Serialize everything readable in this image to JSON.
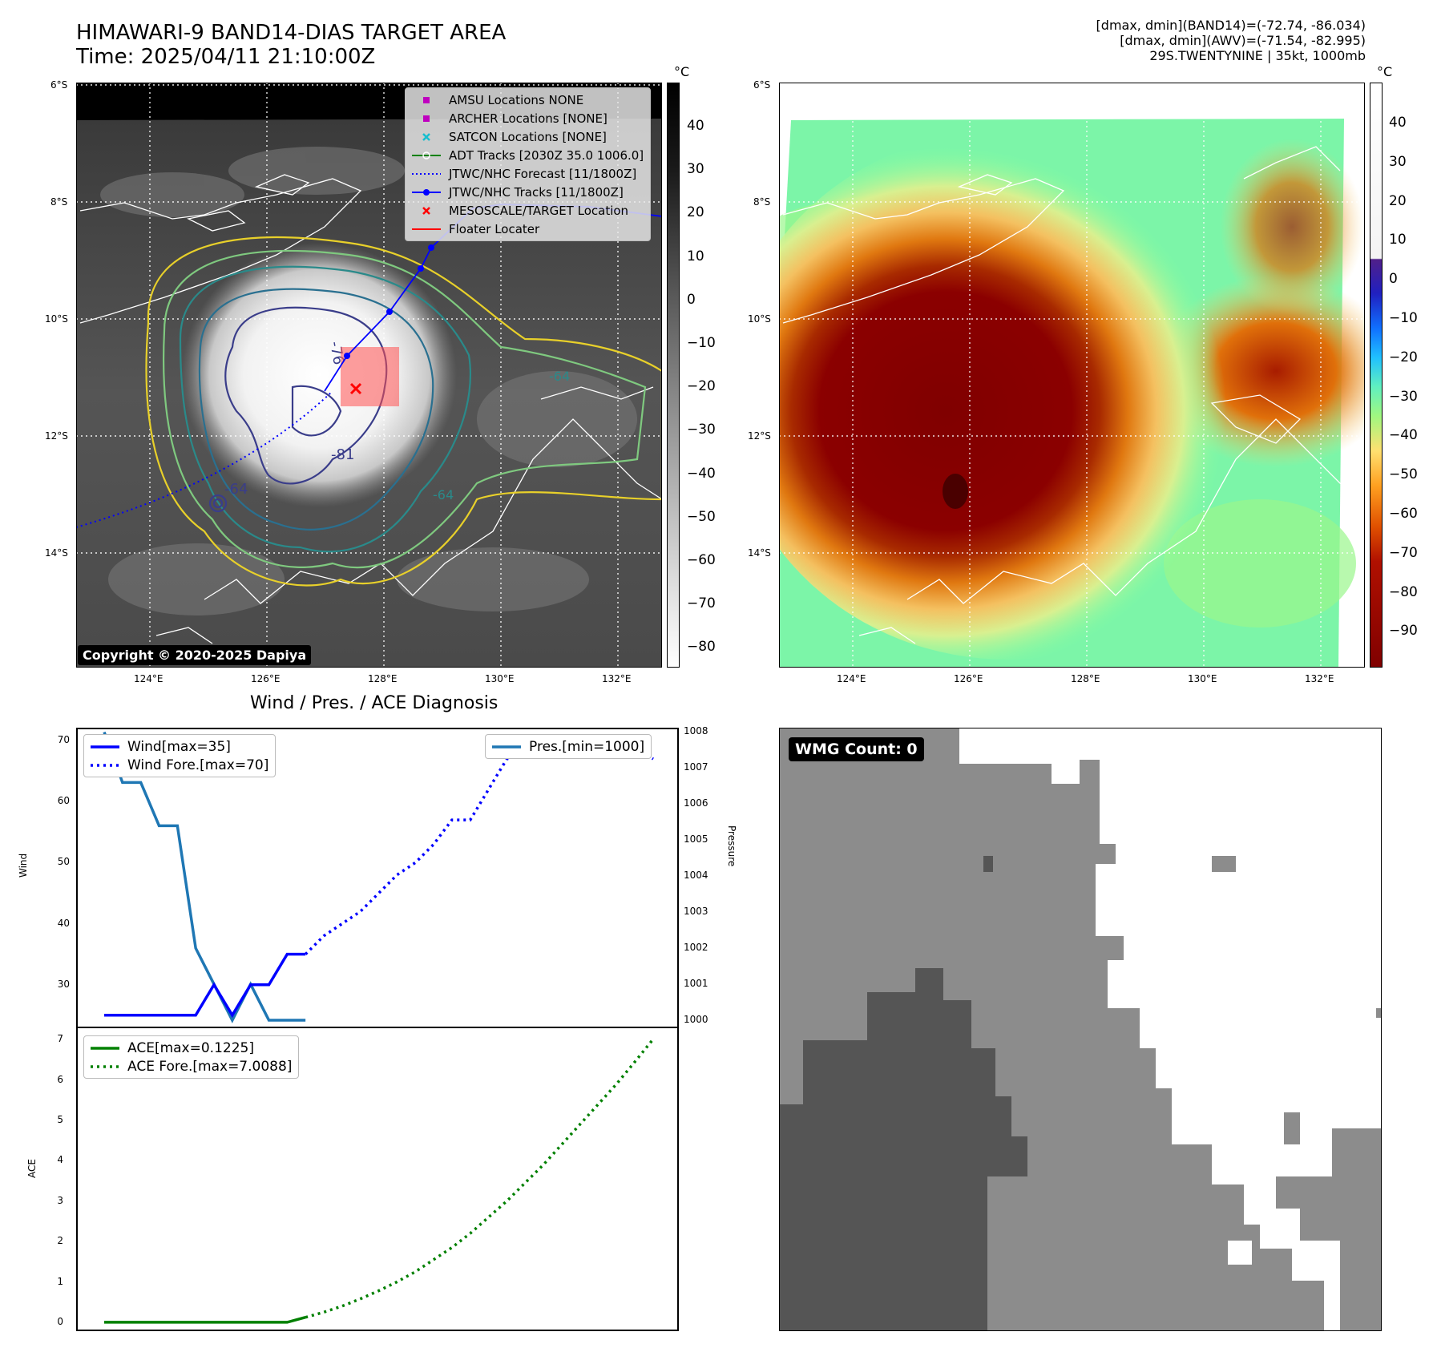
{
  "header": {
    "title_line1": "HIMAWARI-9 BAND14-DIAS TARGET AREA",
    "title_line2": "Time: 2025/04/11 21:10:00Z",
    "info_line1": "[dmax, dmin](BAND14)=(-72.74, -86.034)",
    "info_line2": "[dmax, dmin](AWV)=(-71.54, -82.995)",
    "info_line3": "29S.TWENTYNINE | 35kt, 1000mb"
  },
  "ir_panel": {
    "lat_labels": [
      "6°S",
      "8°S",
      "10°S",
      "12°S",
      "14°S"
    ],
    "lon_labels": [
      "124°E",
      "126°E",
      "128°E",
      "130°E",
      "132°E"
    ],
    "contour_labels": [
      "-64",
      "-76",
      "-81",
      "-64",
      "-64"
    ],
    "legend": [
      {
        "label": "AMSU Locations NONE",
        "symbol": "square",
        "color": "#bf00bf"
      },
      {
        "label": "ARCHER Locations [NONE]",
        "symbol": "square",
        "color": "#bf00bf"
      },
      {
        "label": "SATCON Locations [NONE]",
        "symbol": "x",
        "color": "#17becf"
      },
      {
        "label": "ADT Tracks [2030Z 35.0 1006.0]",
        "symbol": "line-circle",
        "color": "#008000"
      },
      {
        "label": "JTWC/NHC Forecast [11/1800Z]",
        "symbol": "dotted",
        "color": "#0000ff"
      },
      {
        "label": "JTWC/NHC Tracks [11/1800Z]",
        "symbol": "line-dot",
        "color": "#0000ff"
      },
      {
        "label": "MESOSCALE/TARGET Location",
        "symbol": "x",
        "color": "#ff0000"
      },
      {
        "label": "Floater Locater",
        "symbol": "line",
        "color": "#ff0000"
      }
    ],
    "copyright": "Copyright © 2020-2025 Dapiya",
    "colorbar": {
      "unit": "°C",
      "ticks": [
        "40",
        "30",
        "20",
        "10",
        "0",
        "−10",
        "−20",
        "−30",
        "−40",
        "−50",
        "−60",
        "−70",
        "−80"
      ]
    }
  },
  "awv_panel": {
    "lat_labels": [
      "6°S",
      "8°S",
      "10°S",
      "12°S",
      "14°S"
    ],
    "lon_labels": [
      "124°E",
      "126°E",
      "128°E",
      "130°E",
      "132°E"
    ],
    "colorbar": {
      "unit": "°C",
      "ticks": [
        "40",
        "30",
        "20",
        "10",
        "0",
        "−10",
        "−20",
        "−30",
        "−40",
        "−50",
        "−60",
        "−70",
        "−80",
        "−90"
      ]
    }
  },
  "diag_panel": {
    "title": "Wind / Pres. / ACE Diagnosis",
    "wind_ylabel": "Wind",
    "pres_ylabel": "Pressure",
    "ace_ylabel": "ACE",
    "wind_ticks": [
      "70",
      "60",
      "50",
      "40",
      "30"
    ],
    "pres_ticks": [
      "1008",
      "1007",
      "1006",
      "1005",
      "1004",
      "1003",
      "1002",
      "1001",
      "1000"
    ],
    "ace_ticks": [
      "7",
      "6",
      "5",
      "4",
      "3",
      "2",
      "1",
      "0"
    ],
    "legend_wind": "Wind[max=35]",
    "legend_wind_fore": "Wind Fore.[max=70]",
    "legend_pres": "Pres.[min=1000]",
    "legend_ace": "ACE[max=0.1225]",
    "legend_ace_fore": "ACE Fore.[max=7.0088]"
  },
  "wmg_panel": {
    "badge": "WMG Count: 0"
  },
  "colors": {
    "wind": "#0000ff",
    "pressure": "#1f77b4",
    "ace": "#008000",
    "track": "#0000ff",
    "target": "#ff0000"
  },
  "chart_data": [
    {
      "type": "line",
      "title": "Wind / Pres. / ACE Diagnosis",
      "ylabel": "Wind",
      "y2label": "Pressure",
      "ylim": [
        23,
        72
      ],
      "y2lim": [
        999.8,
        1008.1
      ],
      "x": [
        0,
        1,
        2,
        3,
        4,
        5,
        6,
        7,
        8,
        9,
        10,
        11,
        12,
        13,
        14,
        15,
        16,
        17,
        18,
        19,
        20,
        21,
        22,
        23,
        24,
        25,
        26,
        27,
        28,
        29,
        30
      ],
      "series": [
        {
          "name": "Wind[max=35]",
          "axis": "left",
          "style": "solid",
          "x": [
            0,
            1,
            2,
            3,
            4,
            5,
            6,
            7,
            8,
            9,
            10,
            11
          ],
          "values": [
            25,
            25,
            25,
            25,
            25,
            25,
            30,
            25,
            30,
            30,
            35,
            35
          ]
        },
        {
          "name": "Wind Fore.[max=70]",
          "axis": "left",
          "style": "dotted",
          "x": [
            11,
            12,
            13,
            14,
            15,
            16,
            17,
            18,
            19,
            20,
            21,
            22,
            23,
            24,
            25,
            26,
            27,
            28,
            29,
            30
          ],
          "values": [
            35,
            38,
            40,
            42,
            45,
            48,
            50,
            53,
            57,
            57,
            62,
            67,
            68,
            69,
            70,
            70,
            70,
            70,
            69,
            67
          ]
        },
        {
          "name": "Pres.[min=1000]",
          "axis": "right",
          "style": "solid",
          "x": [
            0,
            1,
            2,
            3,
            4,
            5,
            6,
            7,
            8,
            9,
            10,
            11
          ],
          "values": [
            1008,
            1006.6,
            1006.6,
            1005.4,
            1005.4,
            1002,
            1001,
            1000,
            1001,
            1000,
            1000,
            1000
          ]
        }
      ]
    },
    {
      "type": "line",
      "ylabel": "ACE",
      "ylim": [
        -0.2,
        7.3
      ],
      "x": [
        0,
        1,
        2,
        3,
        4,
        5,
        6,
        7,
        8,
        9,
        10,
        11,
        12,
        13,
        14,
        15,
        16,
        17,
        18,
        19,
        20,
        21,
        22,
        23,
        24,
        25,
        26,
        27,
        28,
        29,
        30
      ],
      "series": [
        {
          "name": "ACE[max=0.1225]",
          "style": "solid",
          "x": [
            0,
            1,
            2,
            3,
            4,
            5,
            6,
            7,
            8,
            9,
            10,
            11
          ],
          "values": [
            0,
            0,
            0,
            0,
            0,
            0,
            0,
            0,
            0,
            0,
            0,
            0.1225
          ]
        },
        {
          "name": "ACE Fore.[max=7.0088]",
          "style": "dotted",
          "x": [
            11,
            12,
            13,
            14,
            15,
            16,
            17,
            18,
            19,
            20,
            21,
            22,
            23,
            24,
            25,
            26,
            27,
            28,
            29,
            30
          ],
          "values": [
            0.1225,
            0.25,
            0.4,
            0.58,
            0.78,
            1.0,
            1.25,
            1.55,
            1.85,
            2.2,
            2.6,
            3.0,
            3.45,
            3.9,
            4.4,
            4.9,
            5.4,
            5.9,
            6.45,
            7.0088
          ]
        }
      ]
    }
  ]
}
